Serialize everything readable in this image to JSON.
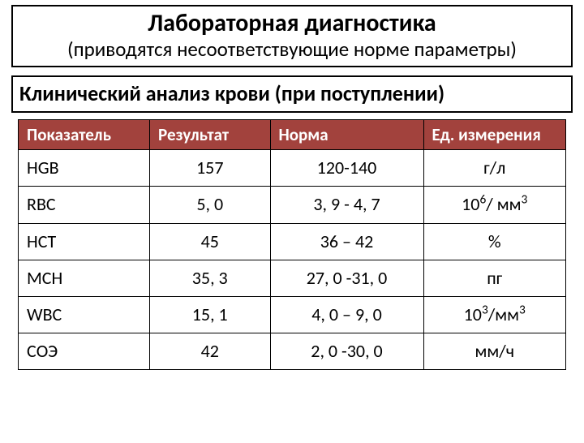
{
  "title_block": {
    "title": "Лабораторная диагностика",
    "subtitle": "(приводятся несоответствующие норме параметры)"
  },
  "section_title": "Клинический анализ крови (при поступлении)",
  "table": {
    "type": "table",
    "header_bg": "#a2423d",
    "header_fg": "#ffffff",
    "border_color": "#000000",
    "header_fontsize": 21,
    "cell_fontsize": 22,
    "col_widths_pct": [
      24,
      22,
      28,
      26
    ],
    "columns": [
      "Показатель",
      "Результат",
      "Норма",
      "Ед. измерения"
    ],
    "rows": [
      {
        "param": "HGB",
        "result": "157",
        "norm": "120-140",
        "unit_html": "г/л"
      },
      {
        "param": "RBC",
        "result": "5, 0",
        "norm": "3, 9  -  4, 7",
        "unit_html": "10<sup>6</sup>/ мм<sup>3</sup>"
      },
      {
        "param": "HCT",
        "result": "45",
        "norm": "36 – 42",
        "unit_html": "%"
      },
      {
        "param": "MCH",
        "result": "35, 3",
        "norm": "27, 0 -31, 0",
        "unit_html": "пг"
      },
      {
        "param": "WBC",
        "result": "15, 1",
        "norm": "4, 0 – 9, 0",
        "unit_html": "10<sup>3</sup>/мм<sup>3</sup>"
      },
      {
        "param": "СОЭ",
        "result": "42",
        "norm": "2, 0 -30, 0",
        "unit_html": "мм/ч"
      }
    ]
  }
}
